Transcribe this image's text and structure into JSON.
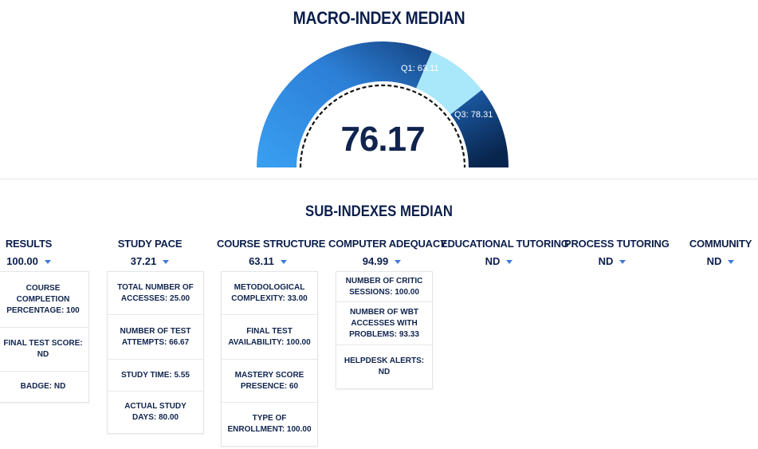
{
  "macro": {
    "title": "MACRO-INDEX MEDIAN",
    "value": "76.17",
    "label_q1": "Q1: 63.11",
    "label_q3": "Q3: 78.31"
  },
  "colors": {
    "arc_light": "#3a97ee",
    "arc_mid": "#1f5fb0",
    "arc_dark": "#0a2a55",
    "arc_highlight": "#a8e6fb",
    "text": "#0c1f4c",
    "caret": "#3d7bd9"
  },
  "sub": {
    "title": "SUB-INDEXES MEDIAN",
    "columns": [
      {
        "title": "RESULTS",
        "value": "100.00",
        "items": [
          "COURSE COMPLETION PERCENTAGE: 100",
          "FINAL TEST SCORE: ND",
          "BADGE: ND"
        ]
      },
      {
        "title": "STUDY PACE",
        "value": "37.21",
        "items": [
          "TOTAL NUMBER OF ACCESSES: 25.00",
          "NUMBER OF TEST ATTEMPTS: 66.67",
          "STUDY TIME: 5.55",
          "ACTUAL STUDY DAYS: 80.00"
        ]
      },
      {
        "title": "COURSE STRUCTURE",
        "value": "63.11",
        "items": [
          "METODOLOGICAL COMPLEXITY: 33.00",
          "FINAL TEST AVAILABILITY: 100.00",
          "MASTERY SCORE PRESENCE: 60",
          "TYPE OF ENROLLMENT: 100.00"
        ]
      },
      {
        "title": "COMPUTER ADEQUACY",
        "value": "94.99",
        "items": [
          "NUMBER OF CRITIC SESSIONS: 100.00",
          "NUMBER OF WBT ACCESSES WITH PROBLEMS: 93.33",
          "HELPDESK ALERTS: ND"
        ]
      },
      {
        "title": "EDUCATIONAL TUTORING",
        "value": "ND",
        "items": []
      },
      {
        "title": "PROCESS TUTORING",
        "value": "ND",
        "items": []
      },
      {
        "title": "COMMUNITY",
        "value": "ND",
        "items": []
      }
    ]
  }
}
